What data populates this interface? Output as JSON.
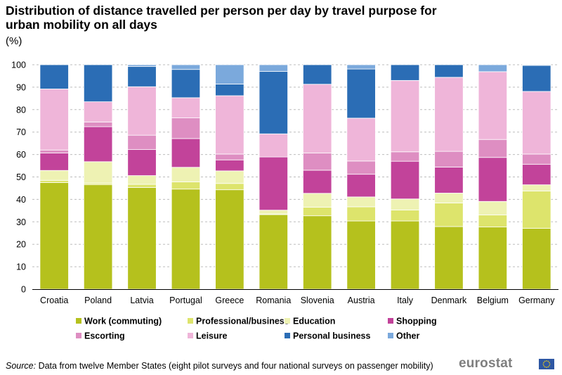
{
  "title": "Distribution of distance travelled per person per day by travel purpose for urban mobility on all days",
  "unit": "(%)",
  "source_label": "Source:",
  "source_text": "Data from twelve Member States (eight pilot surveys and four national surveys on passenger mobility)",
  "brand": "eurostat",
  "chart_data": {
    "type": "bar",
    "stacked": true,
    "categories": [
      "Croatia",
      "Poland",
      "Latvia",
      "Portugal",
      "Greece",
      "Romania",
      "Slovenia",
      "Austria",
      "Italy",
      "Denmark",
      "Belgium",
      "Germany"
    ],
    "ylim": [
      0,
      100
    ],
    "yticks": [
      0,
      10,
      20,
      30,
      40,
      50,
      60,
      70,
      80,
      90,
      100
    ],
    "grid": true,
    "legend_position": "bottom",
    "series": [
      {
        "name": "Work (commuting)",
        "color": "#b5c11d",
        "values": [
          47.5,
          46.6,
          45.3,
          44.6,
          44.3,
          33.2,
          32.7,
          30.4,
          30.4,
          27.9,
          27.7,
          27.1
        ]
      },
      {
        "name": "Professional/business",
        "color": "#dde46c",
        "values": [
          1.0,
          0.6,
          1.4,
          3.2,
          2.8,
          0.3,
          3.8,
          6.3,
          4.9,
          10.5,
          5.4,
          16.6
        ]
      },
      {
        "name": "Education",
        "color": "#eef2b3",
        "values": [
          4.4,
          9.6,
          3.9,
          6.5,
          5.6,
          1.7,
          6.2,
          4.4,
          4.9,
          4.4,
          6.0,
          2.8
        ]
      },
      {
        "name": "Shopping",
        "color": "#c2439a",
        "values": [
          7.8,
          15.6,
          11.6,
          12.8,
          4.9,
          23.7,
          10.3,
          10.1,
          16.8,
          11.6,
          19.6,
          9.1
        ]
      },
      {
        "name": "Escorting",
        "color": "#de8ec2",
        "values": [
          1.3,
          2.1,
          6.4,
          9.2,
          2.6,
          0.0,
          7.7,
          5.9,
          4.2,
          7.0,
          8.0,
          4.6
        ]
      },
      {
        "name": "Leisure",
        "color": "#efb5d9",
        "values": [
          27.2,
          9.0,
          21.6,
          9.0,
          26.0,
          10.3,
          30.6,
          19.1,
          31.8,
          33.0,
          30.2,
          27.9
        ]
      },
      {
        "name": "Personal business",
        "color": "#2b6db5",
        "values": [
          10.8,
          16.5,
          9.0,
          12.6,
          5.2,
          27.8,
          8.7,
          21.9,
          7.0,
          5.6,
          0.0,
          11.6
        ]
      },
      {
        "name": "Other",
        "color": "#7ba9dc",
        "values": [
          0.0,
          0.0,
          0.8,
          2.1,
          8.6,
          3.0,
          0.0,
          1.9,
          0.0,
          0.0,
          3.1,
          0.3
        ]
      }
    ]
  }
}
